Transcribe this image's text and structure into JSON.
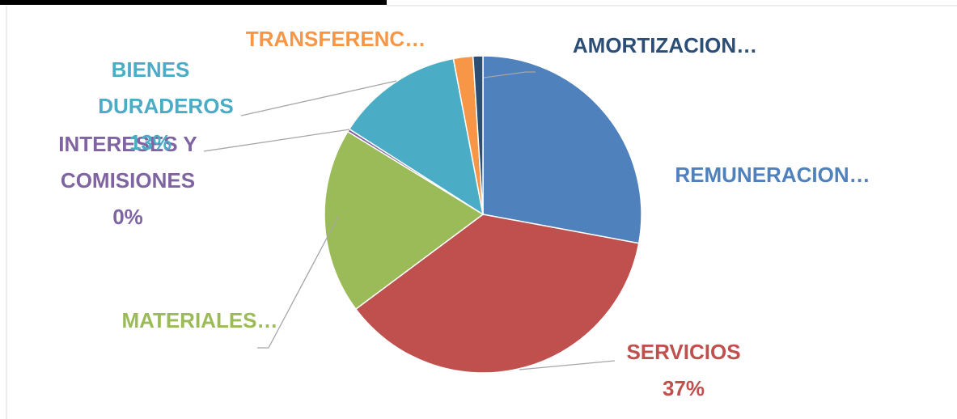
{
  "chart_data": {
    "type": "pie",
    "categories": [
      "REMUNERACION…",
      "SERVICIOS",
      "MATERIALES…",
      "INTERESES Y COMISIONES",
      "BIENES DURADEROS",
      "TRANSFERENC…",
      "AMORTIZACION…"
    ],
    "values": [
      28,
      37,
      19,
      0.3,
      13,
      2,
      1
    ],
    "value_labels": [
      null,
      "37%",
      null,
      "0%",
      "13%",
      null,
      null
    ],
    "colors": [
      "#4f81bd",
      "#c0504d",
      "#9bbb59",
      "#8064a2",
      "#4bacc6",
      "#f79646",
      "#2c4d75"
    ]
  }
}
